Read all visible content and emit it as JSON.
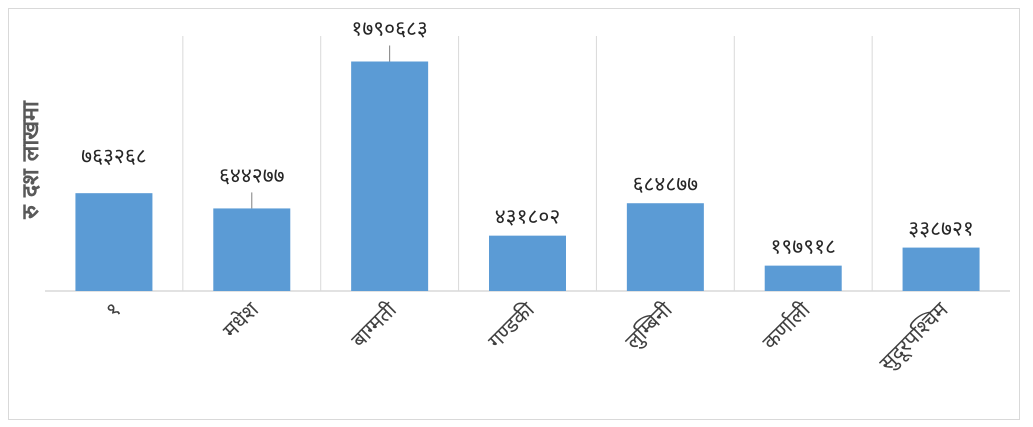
{
  "chart_data": {
    "type": "bar",
    "ylabel": "रु दश लाखमा",
    "categories": [
      "१",
      "मधेश",
      "बाग्मती",
      "गण्डकी",
      "लुम्बिनी",
      "कर्णाली",
      "सुदूरपश्चिम"
    ],
    "values": [
      763268,
      644277,
      1790683,
      431802,
      684877,
      197918,
      338721
    ],
    "data_labels": [
      "७६३२६८",
      "६४४२७७",
      "१७९०६८३",
      "४३१८०२",
      "६८४८७७",
      "१९७९१८",
      "३३८७२१"
    ],
    "ylim": [
      0,
      2000000
    ],
    "grid": true,
    "bar_color": "#5b9bd5",
    "gridline_color": "#d9d9d9"
  }
}
